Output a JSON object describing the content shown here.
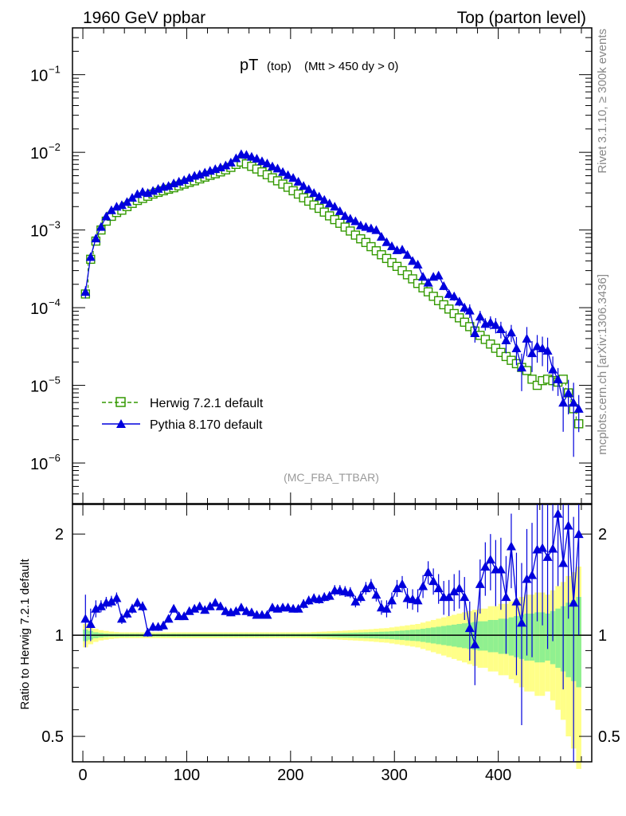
{
  "header": {
    "left": "1960 GeV ppbar",
    "right": "Top (parton level)"
  },
  "side_labels": {
    "rivet": "Rivet 3.1.10, ≥ 300k events",
    "mcplots": "mcplots.cern.ch [arXiv:1306.3436]"
  },
  "chart_data": [
    {
      "type": "line",
      "panel": "main",
      "title_main": "pT",
      "title_sub": "(top)",
      "title_cuts": "(Mtt > 450 dy > 0)",
      "watermark": "(MC_FBA_TTBAR)",
      "yscale": "log",
      "xlim": [
        -10,
        490
      ],
      "ylim": [
        3e-07,
        0.4
      ],
      "ytick_labels": [
        {
          "base": "10",
          "exp": "−1",
          "value": 0.1
        },
        {
          "base": "10",
          "exp": "−2",
          "value": 0.01
        },
        {
          "base": "10",
          "exp": "−3",
          "value": 0.001
        },
        {
          "base": "10",
          "exp": "−4",
          "value": 0.0001
        },
        {
          "base": "10",
          "exp": "−5",
          "value": 1e-05
        },
        {
          "base": "10",
          "exp": "−6",
          "value": 1e-06
        }
      ],
      "legend_position": "bottom-left",
      "series": [
        {
          "name": "Herwig 7.2.1 default",
          "color": "#339900",
          "marker": "open-square",
          "linestyle": "dashed"
        },
        {
          "name": "Pythia 8.170 default",
          "color": "#0000dd",
          "marker": "filled-triangle",
          "linestyle": "solid"
        }
      ],
      "x": [
        2.5,
        7.5,
        12.5,
        17.5,
        22.5,
        27.5,
        32.5,
        37.5,
        42.5,
        47.5,
        52.5,
        57.5,
        62.5,
        67.5,
        72.5,
        77.5,
        82.5,
        87.5,
        92.5,
        97.5,
        102.5,
        107.5,
        112.5,
        117.5,
        122.5,
        127.5,
        132.5,
        137.5,
        142.5,
        147.5,
        152.5,
        157.5,
        162.5,
        167.5,
        172.5,
        177.5,
        182.5,
        187.5,
        192.5,
        197.5,
        202.5,
        207.5,
        212.5,
        217.5,
        222.5,
        227.5,
        232.5,
        237.5,
        242.5,
        247.5,
        252.5,
        257.5,
        262.5,
        267.5,
        272.5,
        277.5,
        282.5,
        287.5,
        292.5,
        297.5,
        302.5,
        307.5,
        312.5,
        317.5,
        322.5,
        327.5,
        332.5,
        337.5,
        342.5,
        347.5,
        352.5,
        357.5,
        362.5,
        367.5,
        372.5,
        377.5,
        382.5,
        387.5,
        392.5,
        397.5,
        402.5,
        407.5,
        412.5,
        417.5,
        422.5,
        427.5,
        432.5,
        437.5,
        442.5,
        447.5,
        452.5,
        457.5,
        462.5,
        467.5,
        472.5,
        477.5
      ],
      "herwig": [
        0.00015,
        0.00042,
        0.00072,
        0.001,
        0.0013,
        0.0015,
        0.00168,
        0.0018,
        0.002,
        0.0022,
        0.0024,
        0.00255,
        0.00272,
        0.0029,
        0.00305,
        0.0032,
        0.00335,
        0.0035,
        0.0037,
        0.0039,
        0.0041,
        0.0043,
        0.00455,
        0.0048,
        0.00505,
        0.0053,
        0.0056,
        0.00595,
        0.0064,
        0.007,
        0.0075,
        0.0071,
        0.0066,
        0.0061,
        0.0056,
        0.00515,
        0.0047,
        0.0043,
        0.0039,
        0.00355,
        0.0032,
        0.0029,
        0.0026,
        0.00235,
        0.0021,
        0.0019,
        0.0017,
        0.00152,
        0.00136,
        0.00122,
        0.00109,
        0.00097,
        0.00086,
        0.00077,
        0.00069,
        0.00061,
        0.00054,
        0.00048,
        0.00043,
        0.00038,
        0.00034,
        0.0003,
        0.000265,
        0.000235,
        0.000205,
        0.00018,
        0.00016,
        0.00014,
        0.000123,
        0.000109,
        9.6e-05,
        8.4e-05,
        7.4e-05,
        6.5e-05,
        5.7e-05,
        5e-05,
        4.4e-05,
        3.9e-05,
        3.4e-05,
        3e-05,
        2.65e-05,
        2.35e-05,
        2.1e-05,
        1.9e-05,
        1.7e-05,
        1.55e-05,
        1.2e-05,
        1e-05,
        1.15e-05,
        1.2e-05,
        1.15e-05,
        1.1e-05,
        1.2e-05,
        8e-06,
        5e-06,
        3.2e-06
      ],
      "pythia": [
        0.00016,
        0.00045,
        0.00078,
        0.0011,
        0.0015,
        0.0018,
        0.002,
        0.0021,
        0.0023,
        0.0026,
        0.0029,
        0.0031,
        0.003,
        0.0032,
        0.0034,
        0.0036,
        0.0037,
        0.004,
        0.0042,
        0.0044,
        0.0047,
        0.005,
        0.0052,
        0.0055,
        0.0058,
        0.0061,
        0.0064,
        0.0068,
        0.0074,
        0.0084,
        0.0095,
        0.0093,
        0.0088,
        0.0083,
        0.0077,
        0.0072,
        0.0066,
        0.0062,
        0.0056,
        0.0051,
        0.0047,
        0.0042,
        0.0037,
        0.00335,
        0.003,
        0.0027,
        0.00245,
        0.0022,
        0.002,
        0.00175,
        0.00152,
        0.0014,
        0.0013,
        0.00115,
        0.0011,
        0.00105,
        0.001,
        0.00082,
        0.0007,
        0.00062,
        0.00055,
        0.00056,
        0.00048,
        0.0004,
        0.00036,
        0.00025,
        0.00021,
        0.00025,
        0.00026,
        0.00019,
        0.00015,
        0.00014,
        0.00012,
        0.0001,
        9.2e-05,
        4.7e-05,
        7.7e-05,
        6.2e-05,
        6.5e-05,
        6e-05,
        5.3e-05,
        3.8e-05,
        4.8e-05,
        3e-05,
        1.7e-05,
        4e-05,
        2.6e-05,
        3.2e-05,
        3e-05,
        2.8e-05,
        1.6e-05,
        1.2e-05,
        6e-06,
        8e-06,
        6e-06,
        5e-06
      ]
    },
    {
      "type": "line",
      "panel": "ratio",
      "ylabel": "Ratio to Herwig 7.2.1 default",
      "xlabel_ticks": [
        "0",
        "100",
        "200",
        "300",
        "400"
      ],
      "ytick_labels": [
        {
          "label": "2",
          "value": 2.0
        },
        {
          "label": "1",
          "value": 1.0
        },
        {
          "label": "0.5",
          "value": 0.5
        }
      ],
      "yscale": "log",
      "ylim": [
        0.42,
        2.45
      ],
      "reference_line": 1.0,
      "band_colors": {
        "inner": "#90f090",
        "outer": "#ffff88"
      },
      "x": [
        2.5,
        7.5,
        12.5,
        17.5,
        22.5,
        27.5,
        32.5,
        37.5,
        42.5,
        47.5,
        52.5,
        57.5,
        62.5,
        67.5,
        72.5,
        77.5,
        82.5,
        87.5,
        92.5,
        97.5,
        102.5,
        107.5,
        112.5,
        117.5,
        122.5,
        127.5,
        132.5,
        137.5,
        142.5,
        147.5,
        152.5,
        157.5,
        162.5,
        167.5,
        172.5,
        177.5,
        182.5,
        187.5,
        192.5,
        197.5,
        202.5,
        207.5,
        212.5,
        217.5,
        222.5,
        227.5,
        232.5,
        237.5,
        242.5,
        247.5,
        252.5,
        257.5,
        262.5,
        267.5,
        272.5,
        277.5,
        282.5,
        287.5,
        292.5,
        297.5,
        302.5,
        307.5,
        312.5,
        317.5,
        322.5,
        327.5,
        332.5,
        337.5,
        342.5,
        347.5,
        352.5,
        357.5,
        362.5,
        367.5,
        372.5,
        377.5,
        382.5,
        387.5,
        392.5,
        397.5,
        402.5,
        407.5,
        412.5,
        417.5,
        422.5,
        427.5,
        432.5,
        437.5,
        442.5,
        447.5,
        452.5,
        457.5,
        462.5,
        467.5,
        472.5,
        477.5
      ],
      "ratio": [
        1.12,
        1.08,
        1.2,
        1.22,
        1.25,
        1.26,
        1.29,
        1.12,
        1.16,
        1.2,
        1.25,
        1.22,
        1.02,
        1.06,
        1.06,
        1.07,
        1.12,
        1.2,
        1.14,
        1.14,
        1.18,
        1.2,
        1.22,
        1.19,
        1.22,
        1.25,
        1.22,
        1.18,
        1.17,
        1.18,
        1.21,
        1.18,
        1.17,
        1.15,
        1.15,
        1.15,
        1.21,
        1.2,
        1.21,
        1.21,
        1.2,
        1.2,
        1.24,
        1.27,
        1.29,
        1.28,
        1.3,
        1.31,
        1.36,
        1.36,
        1.35,
        1.34,
        1.26,
        1.3,
        1.38,
        1.41,
        1.32,
        1.21,
        1.2,
        1.27,
        1.38,
        1.42,
        1.29,
        1.28,
        1.27,
        1.4,
        1.54,
        1.45,
        1.38,
        1.3,
        1.3,
        1.35,
        1.38,
        1.3,
        1.05,
        0.94,
        1.42,
        1.6,
        1.68,
        1.57,
        1.57,
        1.3,
        1.84,
        1.26,
        1.09,
        1.47,
        1.51,
        1.8,
        1.82,
        1.71,
        1.81,
        2.3,
        1.64,
        2.12,
        1.25,
        2.0
      ],
      "ratio_err": [
        0.2,
        0.12,
        0.07,
        0.05,
        0.05,
        0.05,
        0.05,
        0.04,
        0.04,
        0.04,
        0.04,
        0.04,
        0.03,
        0.03,
        0.03,
        0.03,
        0.03,
        0.03,
        0.03,
        0.03,
        0.03,
        0.03,
        0.03,
        0.03,
        0.03,
        0.03,
        0.03,
        0.03,
        0.03,
        0.03,
        0.03,
        0.03,
        0.03,
        0.03,
        0.03,
        0.03,
        0.03,
        0.03,
        0.03,
        0.03,
        0.03,
        0.03,
        0.04,
        0.04,
        0.04,
        0.04,
        0.04,
        0.04,
        0.05,
        0.05,
        0.05,
        0.05,
        0.05,
        0.05,
        0.06,
        0.06,
        0.06,
        0.06,
        0.07,
        0.07,
        0.08,
        0.08,
        0.09,
        0.09,
        0.1,
        0.11,
        0.12,
        0.13,
        0.14,
        0.15,
        0.16,
        0.17,
        0.18,
        0.19,
        0.21,
        0.23,
        0.26,
        0.29,
        0.32,
        0.35,
        0.38,
        0.42,
        0.46,
        0.5,
        0.55,
        0.6,
        0.65,
        0.7,
        0.75,
        0.8,
        0.85,
        0.9,
        0.95,
        1.0,
        1.0,
        1.0
      ],
      "band_inner": [
        0.04,
        0.03,
        0.02,
        0.015,
        0.012,
        0.01,
        0.01,
        0.01,
        0.01,
        0.01,
        0.01,
        0.01,
        0.01,
        0.01,
        0.01,
        0.01,
        0.01,
        0.01,
        0.01,
        0.01,
        0.01,
        0.01,
        0.01,
        0.01,
        0.01,
        0.01,
        0.01,
        0.01,
        0.01,
        0.01,
        0.01,
        0.01,
        0.01,
        0.01,
        0.01,
        0.01,
        0.01,
        0.01,
        0.01,
        0.01,
        0.01,
        0.01,
        0.01,
        0.01,
        0.011,
        0.012,
        0.012,
        0.013,
        0.014,
        0.015,
        0.016,
        0.017,
        0.018,
        0.019,
        0.02,
        0.021,
        0.022,
        0.024,
        0.025,
        0.027,
        0.03,
        0.032,
        0.035,
        0.038,
        0.04,
        0.045,
        0.05,
        0.055,
        0.06,
        0.065,
        0.07,
        0.075,
        0.08,
        0.085,
        0.09,
        0.095,
        0.1,
        0.1,
        0.11,
        0.11,
        0.12,
        0.12,
        0.13,
        0.14,
        0.15,
        0.16,
        0.16,
        0.17,
        0.17,
        0.16,
        0.18,
        0.2,
        0.22,
        0.25,
        0.27,
        0.3
      ],
      "band_outer": [
        0.08,
        0.06,
        0.045,
        0.035,
        0.03,
        0.025,
        0.022,
        0.02,
        0.02,
        0.02,
        0.02,
        0.02,
        0.02,
        0.02,
        0.02,
        0.02,
        0.02,
        0.02,
        0.02,
        0.02,
        0.02,
        0.02,
        0.02,
        0.02,
        0.02,
        0.02,
        0.02,
        0.02,
        0.02,
        0.02,
        0.02,
        0.02,
        0.02,
        0.02,
        0.02,
        0.02,
        0.02,
        0.02,
        0.02,
        0.02,
        0.02,
        0.02,
        0.02,
        0.02,
        0.022,
        0.024,
        0.025,
        0.027,
        0.028,
        0.03,
        0.032,
        0.034,
        0.036,
        0.038,
        0.04,
        0.042,
        0.045,
        0.048,
        0.05,
        0.055,
        0.06,
        0.065,
        0.07,
        0.075,
        0.08,
        0.09,
        0.1,
        0.11,
        0.12,
        0.13,
        0.14,
        0.15,
        0.16,
        0.17,
        0.18,
        0.19,
        0.2,
        0.2,
        0.22,
        0.22,
        0.24,
        0.24,
        0.26,
        0.28,
        0.3,
        0.32,
        0.32,
        0.34,
        0.34,
        0.32,
        0.36,
        0.4,
        0.44,
        0.5,
        0.54,
        0.6
      ]
    }
  ]
}
